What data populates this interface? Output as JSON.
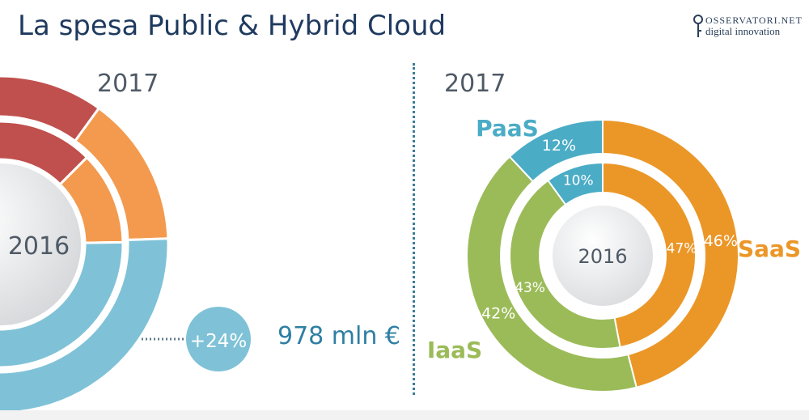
{
  "title": "La spesa Public & Hybrid Cloud",
  "logo": {
    "line1": "OSSERVATORI.NET",
    "line2": "digital innovation"
  },
  "left_panel": {
    "outer_year": "2017",
    "inner_year": "2016",
    "growth_badge": "+24%",
    "total_value": "978 mln €"
  },
  "right_panel": {
    "outer_year": "2017",
    "inner_year": "2016"
  },
  "chart_data": [
    {
      "type": "pie",
      "title": "",
      "outer_ring_label": "2017",
      "inner_ring_label": "2016",
      "segments": [
        "red",
        "orange",
        "blue"
      ],
      "colors": {
        "red": "#c0504d",
        "orange": "#f39a4f",
        "blue": "#7fc2d7"
      },
      "annotations": [
        "+24%",
        "978 mln €"
      ]
    },
    {
      "type": "pie",
      "title": "",
      "outer_ring_label": "2017",
      "inner_ring_label": "2016",
      "categories": [
        "SaaS",
        "IaaS",
        "PaaS"
      ],
      "series": [
        {
          "name": "2017",
          "values": [
            46,
            42,
            12
          ],
          "labels": [
            "46%",
            "42%",
            "12%"
          ]
        },
        {
          "name": "2016",
          "values": [
            47,
            43,
            10
          ],
          "labels": [
            "47%",
            "43%",
            "10%"
          ]
        }
      ],
      "colors": {
        "SaaS": "#eb9728",
        "IaaS": "#9bbb59",
        "PaaS": "#4bacc6"
      }
    }
  ]
}
